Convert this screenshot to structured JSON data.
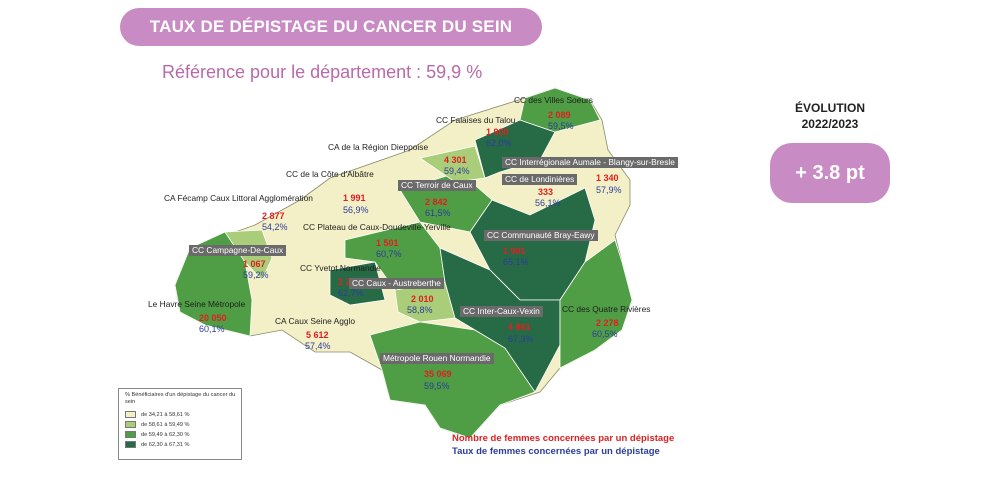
{
  "header": {
    "title": "TAUX DE DÉPISTAGE DU CANCER DU SEIN",
    "reference": "Référence pour le département : 59,9 %"
  },
  "evolution": {
    "label": "ÉVOLUTION",
    "period": "2022/2023",
    "value": "+ 3.8 pt"
  },
  "colors": {
    "class1": "#f3efc7",
    "class2": "#a9cd78",
    "class3": "#4f9d45",
    "class4": "#276a46",
    "title_pill": "#c98bc3",
    "count_text": "#e02020",
    "rate_text": "#2d3d9c"
  },
  "legend": {
    "title": "% Bénéficiaires d'un dépistage du cancer du sein",
    "items": [
      {
        "label": "de 34,21 à 58,61 %",
        "color": "#f3efc7"
      },
      {
        "label": "de 58,61 à 59,49 %",
        "color": "#a9cd78"
      },
      {
        "label": "de 59,49 à 62,30 %",
        "color": "#4f9d45"
      },
      {
        "label": "de 62,30 à 67,31 %",
        "color": "#276a46"
      }
    ]
  },
  "footer": {
    "count_caption": "Nombre de femmes concernées par un dépistage",
    "rate_caption": "Taux de femmes concernées par un dépistage"
  },
  "areas": [
    {
      "name": "CC des Villes Soeurs",
      "count": "2 089",
      "rate": "59,5%"
    },
    {
      "name": "CC Falaises du Talou",
      "count": "1 900",
      "rate": "62,0%"
    },
    {
      "name": "CA de la Région Dieppoise",
      "count": "4 301",
      "rate": "59,4%"
    },
    {
      "name": "CC Interrégionale Aumale - Blangy-sur-Bresle",
      "count": "1 340",
      "rate": "57,9%"
    },
    {
      "name": "CC de Londinières",
      "count": "333",
      "rate": "56,1%"
    },
    {
      "name": "CC de la Côte d'Albâtre",
      "count": "1 991",
      "rate": "56,9%"
    },
    {
      "name": "CC Terroir de Caux",
      "count": "2 842",
      "rate": "61,5%"
    },
    {
      "name": "CA Fécamp Caux Littoral Agglomération",
      "count": "2 877",
      "rate": "54,2%"
    },
    {
      "name": "CC Plateau de Caux-Doudeville-Yerville",
      "count": "1 501",
      "rate": "60,7%"
    },
    {
      "name": "CC Communauté Bray-Eawy",
      "count": "1 901",
      "rate": "65,1%"
    },
    {
      "name": "CC Campagne-De-Caux",
      "count": "1 067",
      "rate": "59,2%"
    },
    {
      "name": "CC Yvetot Normandie",
      "count": "2 242",
      "rate": "62,7%"
    },
    {
      "name": "CC Caux - Austreberthe",
      "count": "2 010",
      "rate": "58,8%"
    },
    {
      "name": "Le Havre Seine Métropole",
      "count": "20 050",
      "rate": "60,1%"
    },
    {
      "name": "CC Inter-Caux-Vexin",
      "count": "4 861",
      "rate": "67,3%"
    },
    {
      "name": "CC des Quatre Rivières",
      "count": "2 278",
      "rate": "60,5%"
    },
    {
      "name": "CA Caux Seine Agglo",
      "count": "5 612",
      "rate": "57,4%"
    },
    {
      "name": "Métropole Rouen Normandie",
      "count": "35 069",
      "rate": "59,5%"
    }
  ]
}
